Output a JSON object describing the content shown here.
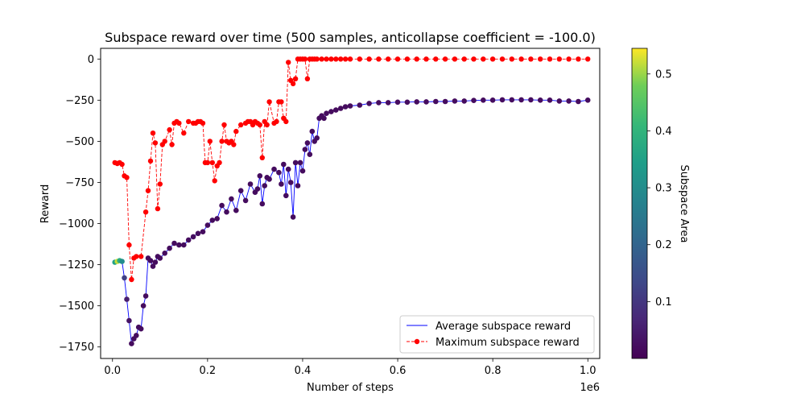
{
  "chart_data": {
    "type": "line",
    "title": "Subspace reward over time (500 samples, anticollapse coefficient = -100.0)",
    "xlabel": "Number of steps",
    "ylabel": "Reward",
    "x_offset_text": "1e6",
    "xlim": [
      -25000,
      1025000
    ],
    "ylim": [
      -1820,
      65
    ],
    "x_ticks": [
      0,
      200000,
      400000,
      600000,
      800000,
      1000000
    ],
    "x_tick_labels": [
      "0.0",
      "0.2",
      "0.4",
      "0.6",
      "0.8",
      "1.0"
    ],
    "y_ticks": [
      0,
      -250,
      -500,
      -750,
      -1000,
      -1250,
      -1500,
      -1750
    ],
    "y_tick_labels": [
      "0",
      "−250",
      "−500",
      "−750",
      "−1000",
      "−1250",
      "−1500",
      "−1750"
    ],
    "grid": false,
    "legend": {
      "placement": "lower-right",
      "entries": [
        "Average subspace reward",
        "Maximum subspace reward"
      ]
    },
    "colorbar": {
      "label": "Subspace Area",
      "colormap": "viridis",
      "range": [
        0.0,
        0.545
      ],
      "ticks": [
        0.1,
        0.2,
        0.3,
        0.4,
        0.5
      ],
      "tick_labels": [
        "0.1",
        "0.2",
        "0.3",
        "0.4",
        "0.5"
      ]
    },
    "colors": {
      "average_line": "#0000ff",
      "maximum": "#ff0000"
    },
    "series": [
      {
        "name": "Average subspace reward",
        "x": [
          5000,
          10000,
          15000,
          20000,
          25000,
          30000,
          35000,
          40000,
          45000,
          50000,
          55000,
          60000,
          65000,
          70000,
          75000,
          80000,
          85000,
          90000,
          95000,
          100000,
          110000,
          120000,
          130000,
          140000,
          150000,
          160000,
          170000,
          180000,
          190000,
          200000,
          210000,
          220000,
          230000,
          240000,
          250000,
          260000,
          270000,
          280000,
          290000,
          300000,
          305000,
          310000,
          315000,
          320000,
          325000,
          330000,
          340000,
          350000,
          355000,
          360000,
          365000,
          370000,
          375000,
          380000,
          385000,
          390000,
          395000,
          400000,
          405000,
          410000,
          415000,
          420000,
          425000,
          430000,
          435000,
          440000,
          445000,
          450000,
          460000,
          470000,
          480000,
          490000,
          500000,
          520000,
          540000,
          560000,
          580000,
          600000,
          620000,
          640000,
          660000,
          680000,
          700000,
          720000,
          740000,
          760000,
          780000,
          800000,
          820000,
          840000,
          860000,
          880000,
          900000,
          920000,
          940000,
          960000,
          980000,
          1000000
        ],
        "y": [
          -1235,
          -1230,
          -1225,
          -1230,
          -1330,
          -1460,
          -1590,
          -1730,
          -1700,
          -1680,
          -1630,
          -1640,
          -1500,
          -1440,
          -1210,
          -1225,
          -1260,
          -1235,
          -1200,
          -1210,
          -1180,
          -1150,
          -1120,
          -1130,
          -1130,
          -1100,
          -1080,
          -1060,
          -1050,
          -1010,
          -980,
          -970,
          -890,
          -930,
          -850,
          -920,
          -800,
          -860,
          -760,
          -810,
          -790,
          -710,
          -880,
          -770,
          -720,
          -730,
          -670,
          -690,
          -760,
          -640,
          -830,
          -670,
          -750,
          -960,
          -630,
          -770,
          -630,
          -680,
          -550,
          -510,
          -580,
          -440,
          -500,
          -480,
          -360,
          -345,
          -360,
          -330,
          -320,
          -310,
          -300,
          -290,
          -285,
          -280,
          -270,
          -265,
          -265,
          -262,
          -262,
          -260,
          -260,
          -258,
          -258,
          -255,
          -255,
          -252,
          -250,
          -250,
          -248,
          -248,
          -248,
          -248,
          -250,
          -250,
          -255,
          -255,
          -258,
          -250
        ],
        "area": [
          0.35,
          0.52,
          0.38,
          0.3,
          0.12,
          0.05,
          0.03,
          0.02,
          0.02,
          0.02,
          0.02,
          0.02,
          0.02,
          0.02,
          0.02,
          0.02,
          0.02,
          0.02,
          0.02,
          0.02,
          0.02,
          0.02,
          0.02,
          0.02,
          0.02,
          0.02,
          0.02,
          0.02,
          0.02,
          0.02,
          0.02,
          0.02,
          0.02,
          0.02,
          0.02,
          0.02,
          0.02,
          0.02,
          0.02,
          0.02,
          0.02,
          0.02,
          0.02,
          0.02,
          0.02,
          0.02,
          0.02,
          0.02,
          0.02,
          0.02,
          0.02,
          0.02,
          0.02,
          0.02,
          0.02,
          0.02,
          0.02,
          0.02,
          0.02,
          0.02,
          0.02,
          0.02,
          0.02,
          0.02,
          0.02,
          0.02,
          0.02,
          0.02,
          0.02,
          0.02,
          0.02,
          0.02,
          0.02,
          0.02,
          0.02,
          0.02,
          0.02,
          0.02,
          0.02,
          0.02,
          0.02,
          0.02,
          0.02,
          0.02,
          0.02,
          0.02,
          0.02,
          0.02,
          0.02,
          0.02,
          0.02,
          0.02,
          0.02,
          0.02,
          0.02,
          0.02,
          0.02,
          0.02
        ]
      },
      {
        "name": "Maximum subspace reward",
        "x": [
          5000,
          10000,
          15000,
          20000,
          25000,
          30000,
          35000,
          40000,
          45000,
          50000,
          60000,
          70000,
          75000,
          80000,
          85000,
          90000,
          95000,
          100000,
          105000,
          110000,
          120000,
          125000,
          130000,
          135000,
          140000,
          150000,
          160000,
          170000,
          175000,
          180000,
          185000,
          190000,
          195000,
          200000,
          205000,
          210000,
          215000,
          220000,
          225000,
          230000,
          235000,
          240000,
          245000,
          250000,
          255000,
          260000,
          270000,
          280000,
          285000,
          290000,
          295000,
          300000,
          305000,
          310000,
          315000,
          320000,
          325000,
          330000,
          340000,
          345000,
          350000,
          355000,
          360000,
          365000,
          370000,
          375000,
          380000,
          385000,
          390000,
          395000,
          400000,
          405000,
          410000,
          415000,
          420000,
          425000,
          430000,
          440000,
          450000,
          460000,
          470000,
          480000,
          490000,
          500000,
          520000,
          540000,
          560000,
          580000,
          600000,
          620000,
          640000,
          660000,
          680000,
          700000,
          720000,
          740000,
          760000,
          780000,
          800000,
          820000,
          840000,
          860000,
          880000,
          900000,
          920000,
          940000,
          960000,
          980000,
          1000000
        ],
        "y": [
          -630,
          -635,
          -630,
          -640,
          -710,
          -720,
          -1130,
          -1340,
          -1210,
          -1200,
          -1200,
          -930,
          -800,
          -620,
          -450,
          -510,
          -910,
          -760,
          -520,
          -500,
          -430,
          -520,
          -390,
          -380,
          -390,
          -450,
          -380,
          -390,
          -390,
          -380,
          -380,
          -390,
          -630,
          -630,
          -500,
          -630,
          -740,
          -650,
          -630,
          -500,
          -400,
          -500,
          -510,
          -500,
          -520,
          -440,
          -400,
          -390,
          -380,
          -380,
          -400,
          -380,
          -390,
          -400,
          -600,
          -380,
          -400,
          -260,
          -390,
          -380,
          -260,
          -260,
          -360,
          -380,
          -20,
          -130,
          -150,
          -120,
          0,
          0,
          0,
          0,
          -120,
          0,
          0,
          0,
          0,
          0,
          0,
          0,
          0,
          0,
          0,
          0,
          0,
          0,
          0,
          0,
          0,
          0,
          0,
          0,
          0,
          0,
          0,
          0,
          0,
          0,
          0,
          0,
          0,
          0,
          0,
          0,
          0,
          0,
          0,
          0,
          0
        ]
      }
    ]
  }
}
